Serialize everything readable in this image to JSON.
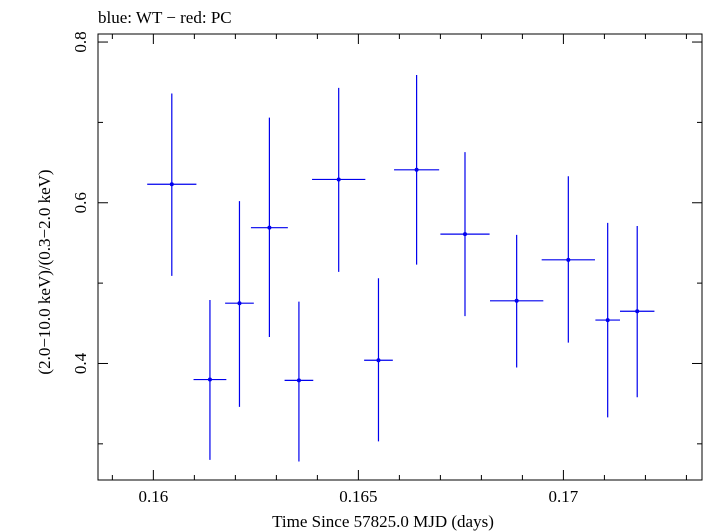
{
  "chart_data": {
    "type": "scatter",
    "title": "blue: WT − red: PC",
    "xlabel": "Time Since 57825.0 MJD (days)",
    "ylabel": "(2.0−10.0 keV)/(0.3−2.0 keV)",
    "xlim": [
      0.15865,
      0.17338
    ],
    "ylim": [
      0.255,
      0.81
    ],
    "x_ticks": [
      {
        "value": 0.16,
        "label": "0.16"
      },
      {
        "value": 0.165,
        "label": "0.165"
      },
      {
        "value": 0.17,
        "label": "0.17"
      }
    ],
    "y_ticks": [
      {
        "value": 0.4,
        "label": "0.4"
      },
      {
        "value": 0.6,
        "label": "0.6"
      },
      {
        "value": 0.8,
        "label": "0.8"
      }
    ],
    "grid": false,
    "series": [
      {
        "color": "#0000ee",
        "points": [
          {
            "x": 0.16045,
            "xerr": 0.0006,
            "y": 0.623,
            "y_lo": 0.509,
            "y_hi": 0.736
          },
          {
            "x": 0.16138,
            "xerr": 0.0004,
            "y": 0.38,
            "y_lo": 0.28,
            "y_hi": 0.479
          },
          {
            "x": 0.1621,
            "xerr": 0.00035,
            "y": 0.475,
            "y_lo": 0.346,
            "y_hi": 0.602
          },
          {
            "x": 0.16283,
            "xerr": 0.00045,
            "y": 0.569,
            "y_lo": 0.433,
            "y_hi": 0.706
          },
          {
            "x": 0.16355,
            "xerr": 0.00035,
            "y": 0.379,
            "y_lo": 0.278,
            "y_hi": 0.477
          },
          {
            "x": 0.16452,
            "xerr": 0.00065,
            "y": 0.629,
            "y_lo": 0.514,
            "y_hi": 0.743
          },
          {
            "x": 0.16549,
            "xerr": 0.00035,
            "y": 0.404,
            "y_lo": 0.303,
            "y_hi": 0.506
          },
          {
            "x": 0.16642,
            "xerr": 0.00055,
            "y": 0.641,
            "y_lo": 0.523,
            "y_hi": 0.759
          },
          {
            "x": 0.1676,
            "xerr": 0.0006,
            "y": 0.561,
            "y_lo": 0.459,
            "y_hi": 0.663
          },
          {
            "x": 0.16886,
            "xerr": 0.00065,
            "y": 0.478,
            "y_lo": 0.395,
            "y_hi": 0.56
          },
          {
            "x": 0.17012,
            "xerr": 0.00065,
            "y": 0.529,
            "y_lo": 0.426,
            "y_hi": 0.633
          },
          {
            "x": 0.17108,
            "xerr": 0.0003,
            "y": 0.454,
            "y_lo": 0.333,
            "y_hi": 0.575
          },
          {
            "x": 0.1718,
            "xerr": 0.00042,
            "y": 0.465,
            "y_lo": 0.358,
            "y_hi": 0.571
          }
        ]
      }
    ]
  }
}
